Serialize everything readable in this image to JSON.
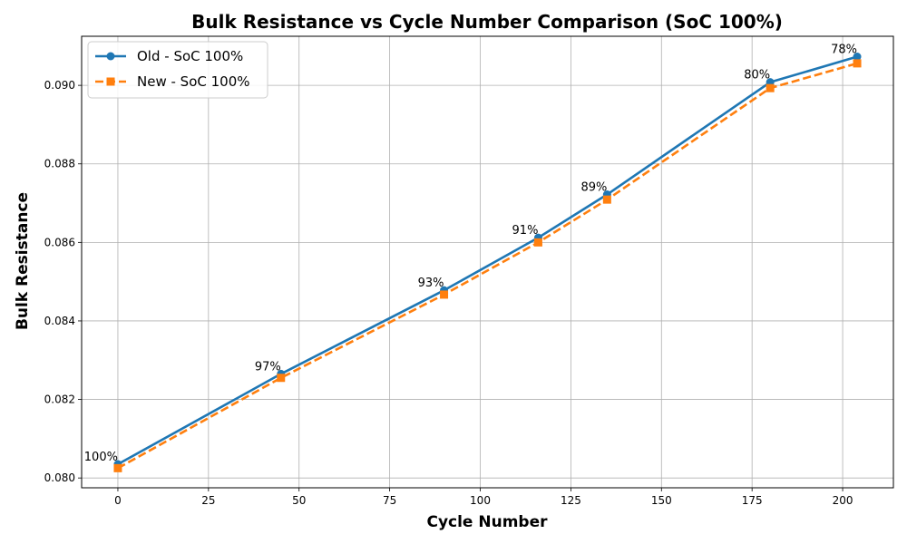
{
  "chart_data": {
    "type": "line",
    "title": "Bulk Resistance vs Cycle Number Comparison (SoC 100%)",
    "xlabel": "Cycle Number",
    "ylabel": "Bulk Resistance",
    "xlim": [
      -10,
      214
    ],
    "ylim": [
      0.07975,
      0.09125
    ],
    "xticks": [
      0,
      25,
      50,
      75,
      100,
      125,
      150,
      175,
      200
    ],
    "yticks": [
      0.08,
      0.082,
      0.084,
      0.086,
      0.088,
      0.09
    ],
    "ytick_labels": [
      "0.080",
      "0.082",
      "0.084",
      "0.086",
      "0.088",
      "0.090"
    ],
    "grid": true,
    "legend_position": "top-left",
    "x": [
      0,
      45,
      90,
      116,
      135,
      180,
      204
    ],
    "series": [
      {
        "name": "Old - SoC 100%",
        "color": "#1f77b4",
        "line_style": "solid",
        "marker": "circle",
        "values": [
          0.08035,
          0.08265,
          0.08478,
          0.08612,
          0.08722,
          0.09008,
          0.09073
        ]
      },
      {
        "name": "New - SoC 100%",
        "color": "#ff7f0e",
        "line_style": "dashed",
        "marker": "square",
        "values": [
          0.08025,
          0.08255,
          0.08467,
          0.086,
          0.08709,
          0.08993,
          0.09056
        ]
      }
    ],
    "annotations": [
      {
        "x": 0,
        "y": 0.08035,
        "text": "100%"
      },
      {
        "x": 45,
        "y": 0.08265,
        "text": "97%"
      },
      {
        "x": 90,
        "y": 0.08478,
        "text": "93%"
      },
      {
        "x": 116,
        "y": 0.08612,
        "text": "91%"
      },
      {
        "x": 135,
        "y": 0.08722,
        "text": "89%"
      },
      {
        "x": 180,
        "y": 0.09008,
        "text": "80%"
      },
      {
        "x": 204,
        "y": 0.09073,
        "text": "78%"
      }
    ]
  }
}
